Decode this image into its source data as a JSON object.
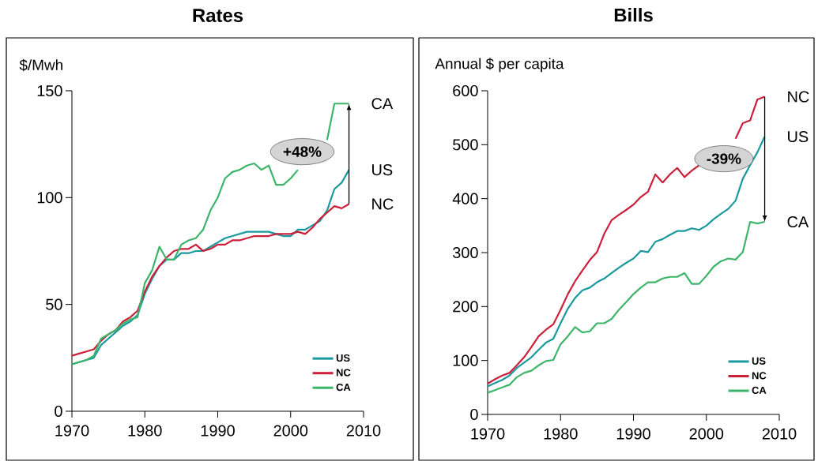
{
  "chart_data": [
    {
      "type": "line",
      "title": "Rates",
      "ylabel": "$/Mwh",
      "x": [
        1970,
        1971,
        1972,
        1973,
        1974,
        1975,
        1976,
        1977,
        1978,
        1979,
        1980,
        1981,
        1982,
        1983,
        1984,
        1985,
        1986,
        1987,
        1988,
        1989,
        1990,
        1991,
        1992,
        1993,
        1994,
        1995,
        1996,
        1997,
        1998,
        1999,
        2000,
        2001,
        2002,
        2003,
        2004,
        2005,
        2006,
        2007,
        2008
      ],
      "series": [
        {
          "name": "US",
          "color": "#1a9a9e",
          "values": [
            22,
            23,
            24,
            25,
            31,
            34,
            37,
            40,
            42,
            45,
            55,
            62,
            68,
            71,
            71,
            74,
            74,
            75,
            75,
            77,
            79,
            81,
            82,
            83,
            84,
            84,
            84,
            84,
            83,
            82,
            82,
            85,
            85,
            87,
            89,
            94,
            104,
            107,
            113
          ]
        },
        {
          "name": "NC",
          "color": "#cc1f3a",
          "values": [
            26,
            27,
            28,
            29,
            33,
            36,
            38,
            42,
            44,
            47,
            56,
            63,
            68,
            72,
            75,
            76,
            76,
            78,
            75,
            76,
            78,
            78,
            80,
            80,
            81,
            82,
            82,
            82,
            83,
            83,
            83,
            84,
            83,
            86,
            90,
            93,
            96,
            95,
            97
          ]
        },
        {
          "name": "CA",
          "color": "#3cb56a",
          "values": [
            22,
            23,
            24,
            26,
            34,
            36,
            38,
            41,
            43,
            44,
            60,
            66,
            77,
            71,
            71,
            78,
            80,
            81,
            85,
            94,
            100,
            109,
            112,
            113,
            115,
            116,
            113,
            115,
            106,
            106,
            109,
            113,
            null,
            null,
            null,
            127,
            144,
            144,
            144
          ]
        }
      ],
      "xlim": [
        1970,
        2010
      ],
      "xticks": [
        1970,
        1980,
        1990,
        2000,
        2010
      ],
      "ylim": [
        0,
        150
      ],
      "yticks": [
        0,
        50,
        100,
        150
      ],
      "legend": "bottom right",
      "annotations": [
        "+48%"
      ]
    },
    {
      "type": "line",
      "title": "Bills",
      "ylabel": "Annual $ per capita",
      "x": [
        1970,
        1971,
        1972,
        1973,
        1974,
        1975,
        1976,
        1977,
        1978,
        1979,
        1980,
        1981,
        1982,
        1983,
        1984,
        1985,
        1986,
        1987,
        1988,
        1989,
        1990,
        1991,
        1992,
        1993,
        1994,
        1995,
        1996,
        1997,
        1998,
        1999,
        2000,
        2001,
        2002,
        2003,
        2004,
        2005,
        2006,
        2007,
        2008
      ],
      "series": [
        {
          "name": "US",
          "color": "#1a9a9e",
          "values": [
            52,
            58,
            64,
            72,
            86,
            96,
            106,
            120,
            133,
            140,
            169,
            196,
            216,
            230,
            235,
            245,
            252,
            262,
            272,
            281,
            289,
            303,
            301,
            320,
            325,
            333,
            340,
            340,
            345,
            342,
            350,
            362,
            372,
            381,
            396,
            437,
            462,
            486,
            515
          ]
        },
        {
          "name": "NC",
          "color": "#cc1f3a",
          "values": [
            57,
            65,
            72,
            77,
            91,
            106,
            125,
            145,
            157,
            167,
            194,
            223,
            247,
            267,
            286,
            301,
            335,
            360,
            370,
            379,
            389,
            403,
            413,
            445,
            430,
            445,
            457,
            440,
            452,
            462,
            null,
            null,
            null,
            null,
            511,
            540,
            545,
            584,
            589
          ]
        },
        {
          "name": "CA",
          "color": "#3cb56a",
          "values": [
            40,
            45,
            50,
            55,
            69,
            77,
            81,
            91,
            99,
            101,
            130,
            145,
            162,
            152,
            154,
            169,
            169,
            177,
            194,
            208,
            223,
            235,
            245,
            245,
            252,
            255,
            255,
            262,
            242,
            242,
            257,
            274,
            284,
            289,
            287,
            301,
            357,
            354,
            357
          ]
        }
      ],
      "xlim": [
        1970,
        2010
      ],
      "xticks": [
        1970,
        1980,
        1990,
        2000,
        2010
      ],
      "ylim": [
        0,
        600
      ],
      "yticks": [
        0,
        100,
        200,
        300,
        400,
        500,
        600
      ],
      "legend": "bottom right",
      "annotations": [
        "-39%"
      ]
    }
  ]
}
